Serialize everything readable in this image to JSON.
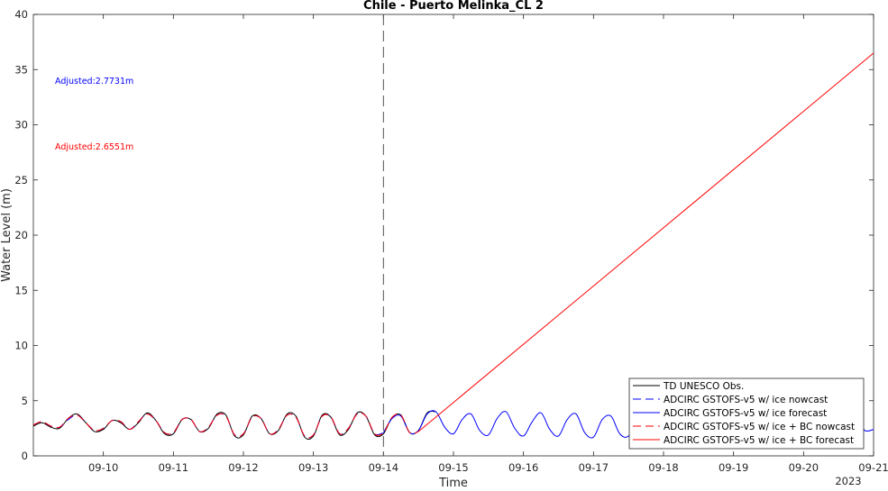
{
  "chart_data": {
    "type": "line",
    "title": "Chile - Puerto Melinka_CL 2",
    "xlabel": "Time",
    "ylabel": "Water Level (m)",
    "xlim": [
      "2023-09-09",
      "2023-09-21"
    ],
    "ylim": [
      0,
      40
    ],
    "yticks": [
      0,
      5,
      10,
      15,
      20,
      25,
      30,
      35,
      40
    ],
    "xticks": [
      {
        "date": "2023-09-10",
        "label": "09-10"
      },
      {
        "date": "2023-09-11",
        "label": "09-11"
      },
      {
        "date": "2023-09-12",
        "label": "09-12"
      },
      {
        "date": "2023-09-13",
        "label": "09-13"
      },
      {
        "date": "2023-09-14",
        "label": "09-14"
      },
      {
        "date": "2023-09-15",
        "label": "09-15"
      },
      {
        "date": "2023-09-16",
        "label": "09-16"
      },
      {
        "date": "2023-09-17",
        "label": "09-17"
      },
      {
        "date": "2023-09-18",
        "label": "09-18"
      },
      {
        "date": "2023-09-19",
        "label": "09-19"
      },
      {
        "date": "2023-09-20",
        "label": "09-20"
      },
      {
        "date": "2023-09-21",
        "label": "09-21"
      }
    ],
    "year_label": "2023",
    "nowcast_divider": "2023-09-14",
    "grid": false,
    "legend_position": "bottom-right",
    "annotations": [
      {
        "text": "Adjusted:2.7731m",
        "color": "#0000ff"
      },
      {
        "text": "Adjusted:2.6551m",
        "color": "#ff0000"
      }
    ],
    "series": [
      {
        "name": "TD UNESCO Obs.",
        "color": "#000000",
        "dash": "solid",
        "x": [
          "2023-09-09 00:00",
          "2023-09-09 03:00",
          "2023-09-09 06:00",
          "2023-09-09 09:00",
          "2023-09-09 12:00",
          "2023-09-09 15:00",
          "2023-09-09 18:00",
          "2023-09-09 21:00",
          "2023-09-10 00:00",
          "2023-09-10 03:00",
          "2023-09-10 06:00",
          "2023-09-10 09:00",
          "2023-09-10 12:00",
          "2023-09-10 15:00",
          "2023-09-10 18:00",
          "2023-09-10 21:00",
          "2023-09-11 00:00",
          "2023-09-11 03:00",
          "2023-09-11 06:00",
          "2023-09-11 09:00",
          "2023-09-11 12:00",
          "2023-09-11 15:00",
          "2023-09-11 18:00",
          "2023-09-11 21:00",
          "2023-09-12 00:00",
          "2023-09-12 03:00",
          "2023-09-12 06:00",
          "2023-09-12 09:00",
          "2023-09-12 12:00",
          "2023-09-12 15:00",
          "2023-09-12 18:00",
          "2023-09-12 21:00",
          "2023-09-13 00:00",
          "2023-09-13 03:00",
          "2023-09-13 06:00",
          "2023-09-13 09:00",
          "2023-09-13 12:00",
          "2023-09-13 15:00",
          "2023-09-13 18:00",
          "2023-09-13 21:00",
          "2023-09-14 00:00",
          "2023-09-14 03:00",
          "2023-09-14 06:00",
          "2023-09-14 09:00",
          "2023-09-14 12:00",
          "2023-09-14 15:00",
          "2023-09-14 18:00"
        ],
        "values": [
          2.7,
          3.0,
          2.6,
          2.5,
          3.4,
          3.8,
          3.0,
          2.2,
          2.4,
          3.2,
          3.0,
          2.4,
          3.0,
          3.9,
          3.2,
          2.0,
          2.0,
          3.3,
          3.3,
          2.2,
          2.5,
          3.8,
          3.7,
          1.8,
          1.9,
          3.6,
          3.4,
          2.0,
          2.3,
          3.8,
          3.6,
          1.7,
          1.8,
          3.7,
          3.5,
          1.9,
          2.4,
          3.9,
          3.6,
          1.9,
          2.0,
          3.5,
          3.7,
          2.1,
          2.3,
          3.9,
          4.0
        ]
      },
      {
        "name": "ADCIRC GSTOFS-v5 w/ ice nowcast",
        "color": "#0000ff",
        "dash": "long-dash",
        "x": [
          "2023-09-09 00:00",
          "2023-09-09 03:00",
          "2023-09-09 06:00",
          "2023-09-09 09:00",
          "2023-09-09 12:00",
          "2023-09-09 15:00",
          "2023-09-09 18:00",
          "2023-09-09 21:00",
          "2023-09-10 00:00",
          "2023-09-10 03:00",
          "2023-09-10 06:00",
          "2023-09-10 09:00",
          "2023-09-10 12:00",
          "2023-09-10 15:00",
          "2023-09-10 18:00",
          "2023-09-10 21:00",
          "2023-09-11 00:00",
          "2023-09-11 03:00",
          "2023-09-11 06:00",
          "2023-09-11 09:00",
          "2023-09-11 12:00",
          "2023-09-11 15:00",
          "2023-09-11 18:00",
          "2023-09-11 21:00",
          "2023-09-12 00:00",
          "2023-09-12 03:00",
          "2023-09-12 06:00",
          "2023-09-12 09:00",
          "2023-09-12 12:00",
          "2023-09-12 15:00",
          "2023-09-12 18:00",
          "2023-09-12 21:00",
          "2023-09-13 00:00",
          "2023-09-13 03:00",
          "2023-09-13 06:00",
          "2023-09-13 09:00",
          "2023-09-13 12:00",
          "2023-09-13 15:00",
          "2023-09-13 18:00",
          "2023-09-13 21:00",
          "2023-09-14 00:00"
        ],
        "values": [
          2.8,
          3.1,
          2.7,
          2.6,
          3.3,
          3.7,
          3.0,
          2.3,
          2.5,
          3.2,
          3.1,
          2.4,
          3.1,
          3.8,
          3.2,
          2.1,
          2.1,
          3.3,
          3.3,
          2.2,
          2.6,
          3.7,
          3.6,
          1.9,
          2.0,
          3.5,
          3.4,
          2.0,
          2.4,
          3.7,
          3.5,
          1.8,
          1.9,
          3.6,
          3.5,
          2.0,
          2.5,
          3.8,
          3.6,
          2.0,
          2.1
        ]
      },
      {
        "name": "ADCIRC GSTOFS-v5 w/ ice forecast",
        "color": "#0000ff",
        "dash": "solid",
        "x": [
          "2023-09-14 00:00",
          "2023-09-14 03:00",
          "2023-09-14 06:00",
          "2023-09-14 09:00",
          "2023-09-14 12:00",
          "2023-09-14 15:00",
          "2023-09-14 18:00",
          "2023-09-14 21:00",
          "2023-09-15 00:00",
          "2023-09-15 03:00",
          "2023-09-15 06:00",
          "2023-09-15 09:00",
          "2023-09-15 12:00",
          "2023-09-15 15:00",
          "2023-09-15 18:00",
          "2023-09-15 21:00",
          "2023-09-16 00:00",
          "2023-09-16 03:00",
          "2023-09-16 06:00",
          "2023-09-16 09:00",
          "2023-09-16 12:00",
          "2023-09-16 15:00",
          "2023-09-16 18:00",
          "2023-09-16 21:00",
          "2023-09-17 00:00",
          "2023-09-17 03:00",
          "2023-09-17 06:00",
          "2023-09-17 09:00",
          "2023-09-17 12:00",
          "2023-09-17 15:00",
          "2023-09-17 18:00",
          "2023-09-17 21:00",
          "2023-09-18 00:00",
          "2023-09-18 03:00",
          "2023-09-18 06:00",
          "2023-09-18 09:00",
          "2023-09-18 12:00",
          "2023-09-18 15:00",
          "2023-09-18 18:00",
          "2023-09-18 21:00",
          "2023-09-19 00:00",
          "2023-09-19 03:00",
          "2023-09-19 06:00",
          "2023-09-19 09:00",
          "2023-09-19 12:00",
          "2023-09-19 15:00",
          "2023-09-19 18:00",
          "2023-09-19 21:00",
          "2023-09-20 00:00",
          "2023-09-20 03:00",
          "2023-09-20 06:00",
          "2023-09-20 09:00",
          "2023-09-20 12:00",
          "2023-09-20 15:00",
          "2023-09-20 18:00",
          "2023-09-20 21:00",
          "2023-09-21 00:00"
        ],
        "values": [
          2.1,
          3.4,
          3.6,
          2.1,
          2.3,
          3.8,
          4.0,
          2.6,
          2.0,
          3.3,
          3.8,
          2.3,
          1.9,
          3.4,
          4.0,
          2.5,
          1.8,
          3.1,
          3.9,
          2.4,
          1.8,
          3.3,
          3.8,
          2.1,
          1.7,
          3.3,
          3.6,
          2.0,
          1.8,
          3.4,
          3.7,
          2.2,
          1.9,
          3.6,
          3.7,
          2.1,
          2.0,
          3.5,
          3.6,
          2.2,
          2.1,
          3.5,
          3.7,
          2.3,
          2.2,
          3.6,
          3.7,
          2.3,
          2.2,
          3.5,
          3.6,
          2.4,
          2.4,
          3.7,
          3.5,
          2.3,
          2.4
        ]
      },
      {
        "name": "ADCIRC GSTOFS-v5 w/ ice + BC nowcast",
        "color": "#ff0000",
        "dash": "long-dash",
        "x": [
          "2023-09-09 00:00",
          "2023-09-09 03:00",
          "2023-09-09 06:00",
          "2023-09-09 09:00",
          "2023-09-09 12:00",
          "2023-09-09 15:00",
          "2023-09-09 18:00",
          "2023-09-09 21:00",
          "2023-09-10 00:00",
          "2023-09-10 03:00",
          "2023-09-10 06:00",
          "2023-09-10 09:00",
          "2023-09-10 12:00",
          "2023-09-10 15:00",
          "2023-09-10 18:00",
          "2023-09-10 21:00",
          "2023-09-11 00:00",
          "2023-09-11 03:00",
          "2023-09-11 06:00",
          "2023-09-11 09:00",
          "2023-09-11 12:00",
          "2023-09-11 15:00",
          "2023-09-11 18:00",
          "2023-09-11 21:00",
          "2023-09-12 00:00",
          "2023-09-12 03:00",
          "2023-09-12 06:00",
          "2023-09-12 09:00",
          "2023-09-12 12:00",
          "2023-09-12 15:00",
          "2023-09-12 18:00",
          "2023-09-12 21:00",
          "2023-09-13 00:00",
          "2023-09-13 03:00",
          "2023-09-13 06:00",
          "2023-09-13 09:00",
          "2023-09-13 12:00",
          "2023-09-13 15:00",
          "2023-09-13 18:00",
          "2023-09-13 21:00",
          "2023-09-14 00:00",
          "2023-09-14 03:00",
          "2023-09-14 06:00",
          "2023-09-14 09:00",
          "2023-09-14 12:00"
        ],
        "values": [
          2.8,
          3.1,
          2.7,
          2.6,
          3.4,
          3.7,
          3.0,
          2.3,
          2.5,
          3.2,
          3.1,
          2.4,
          3.1,
          3.8,
          3.2,
          2.1,
          2.1,
          3.3,
          3.3,
          2.2,
          2.6,
          3.7,
          3.6,
          1.9,
          2.0,
          3.5,
          3.4,
          2.0,
          2.4,
          3.7,
          3.5,
          1.8,
          1.9,
          3.6,
          3.5,
          2.0,
          2.5,
          3.8,
          3.6,
          2.0,
          2.1,
          3.5,
          3.7,
          2.1,
          2.2
        ]
      },
      {
        "name": "ADCIRC GSTOFS-v5 w/ ice + BC forecast",
        "color": "#ff0000",
        "dash": "solid",
        "x": [
          "2023-09-14 12:00",
          "2023-09-21 00:00"
        ],
        "values": [
          2.2,
          36.5
        ]
      }
    ]
  }
}
